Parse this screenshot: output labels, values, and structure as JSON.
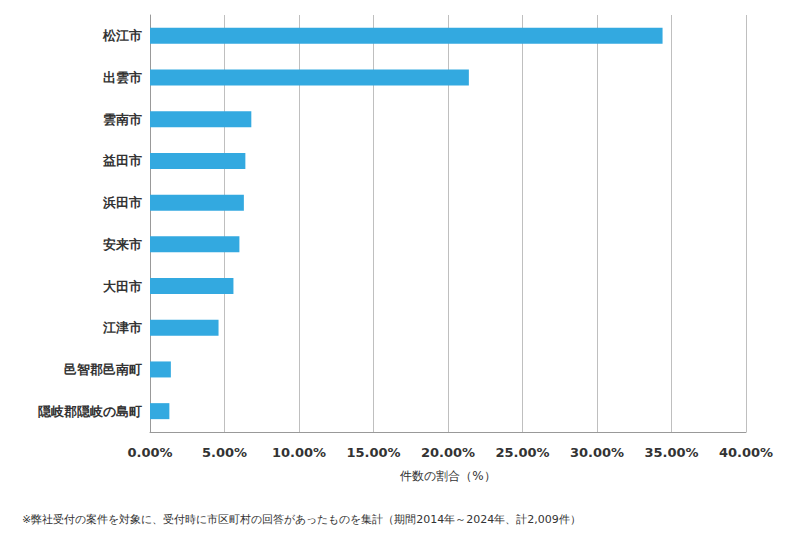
{
  "chart_data": {
    "type": "bar",
    "orientation": "horizontal",
    "categories": [
      "松江市",
      "出雲市",
      "雲南市",
      "益田市",
      "浜田市",
      "安来市",
      "大田市",
      "江津市",
      "邑智郡邑南町",
      "隠岐郡隠岐の島町"
    ],
    "values": [
      34.4,
      21.4,
      6.8,
      6.4,
      6.3,
      6.0,
      5.6,
      4.6,
      1.4,
      1.3
    ],
    "color": "#33a9e0",
    "xlabel": "件数の割合（%）",
    "xlim": [
      0,
      40
    ],
    "xticks": [
      {
        "value": 0,
        "label": "0.00%"
      },
      {
        "value": 5,
        "label": "5.00%"
      },
      {
        "value": 10,
        "label": "10.00%"
      },
      {
        "value": 15,
        "label": "15.00%"
      },
      {
        "value": 20,
        "label": "20.00%"
      },
      {
        "value": 25,
        "label": "25.00%"
      },
      {
        "value": 30,
        "label": "30.00%"
      },
      {
        "value": 35,
        "label": "35.00%"
      },
      {
        "value": 40,
        "label": "40.00%"
      }
    ],
    "grid": true,
    "annotations": [
      "※弊社受付の案件を対象に、受付時に市区町村の回答があったものを集計（期間2014年～2024年、計2,009件）"
    ]
  }
}
